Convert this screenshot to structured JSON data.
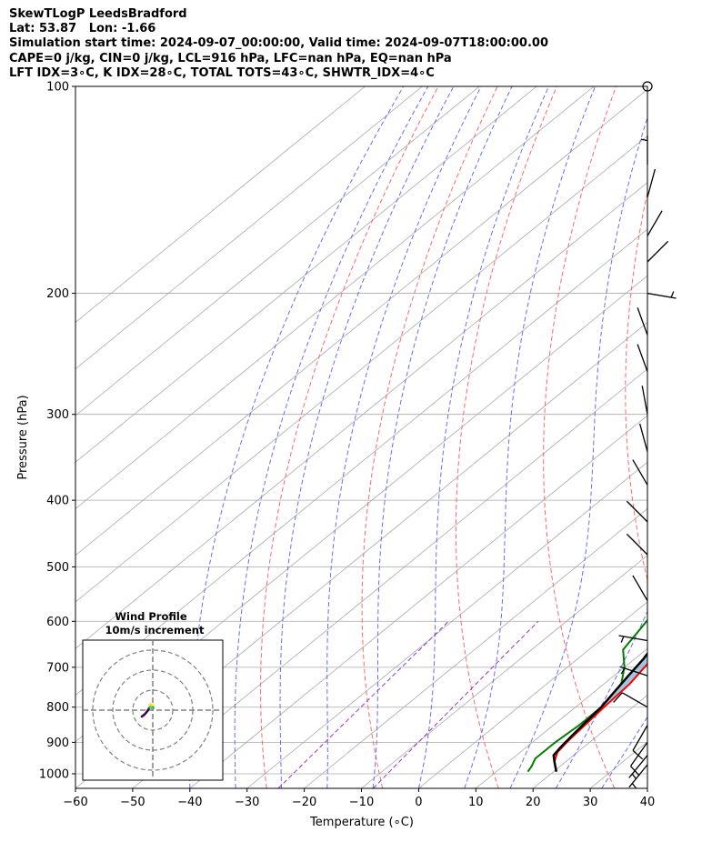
{
  "title_lines": [
    "SkewTLogP LeedsBradford",
    "Lat: 53.87   Lon: -1.66",
    "Simulation start time: 2024-09-07_00:00:00, Valid time: 2024-09-07T18:00:00.00",
    "CAPE=0 j/kg, CIN=0 j/kg, LCL=916 hPa, LFC=nan hPa, EQ=nan hPa",
    "LFT IDX=3∘C, K IDX=28∘C, TOTAL TOTS=43∘C, SHWTR_IDX=4∘C"
  ],
  "chart_data": {
    "type": "line",
    "chart_kind": "skew-T log-P",
    "xlabel": "Temperature (∘C)",
    "ylabel": "Pressure (hPa)",
    "xlim": [
      -60,
      40
    ],
    "ylim": [
      1050,
      100
    ],
    "y_scale": "log",
    "x_ticks": [
      -60,
      -50,
      -40,
      -30,
      -20,
      -10,
      0,
      10,
      20,
      30,
      40
    ],
    "x_tick_labels": [
      "−60",
      "−50",
      "−40",
      "−30",
      "−20",
      "−10",
      "0",
      "10",
      "20",
      "30",
      "40"
    ],
    "y_ticks": [
      100,
      200,
      300,
      400,
      500,
      600,
      700,
      800,
      900,
      1000
    ],
    "grid": true,
    "colors": {
      "temperature": "#ff0000",
      "dewpoint": "#008000",
      "parcel": "#000000",
      "cape_fill": "#7aaed4",
      "dry_adiabat": "#ff6666",
      "moist_adiabat": "#6a6aff",
      "mixing_ratio": "#9933cc",
      "isotherm": "#aaaaaa"
    },
    "series": [
      {
        "key": "temperature",
        "points": [
          [
            20.5,
            993
          ],
          [
            18,
            960
          ],
          [
            16.5,
            930
          ],
          [
            16,
            900
          ],
          [
            15.5,
            850
          ],
          [
            15,
            800
          ],
          [
            14.5,
            740
          ],
          [
            13.5,
            700
          ],
          [
            12.5,
            660
          ],
          [
            11.5,
            600
          ],
          [
            10,
            540
          ],
          [
            9,
            500
          ],
          [
            7,
            450
          ],
          [
            4.5,
            400
          ],
          [
            2.5,
            360
          ],
          [
            0,
            330
          ],
          [
            -2.5,
            305
          ],
          [
            -4,
            285
          ],
          [
            -5.5,
            265
          ],
          [
            -6.5,
            250
          ],
          [
            -7,
            235
          ],
          [
            -6.5,
            220
          ],
          [
            -5,
            210
          ],
          [
            -3,
            200
          ],
          [
            -1,
            192
          ],
          [
            1,
            184
          ],
          [
            3,
            175
          ],
          [
            5,
            165
          ],
          [
            7,
            155
          ],
          [
            9,
            146
          ],
          [
            11,
            138
          ],
          [
            12.5,
            130
          ],
          [
            13.5,
            122
          ],
          [
            14.5,
            114
          ],
          [
            15.5,
            106
          ],
          [
            16,
            100
          ]
        ]
      },
      {
        "key": "dewpoint",
        "points": [
          [
            15.5,
            993
          ],
          [
            15,
            975
          ],
          [
            14,
            950
          ],
          [
            14,
            900
          ],
          [
            14.5,
            850
          ],
          [
            14.5,
            800
          ],
          [
            13,
            740
          ],
          [
            10,
            700
          ],
          [
            6,
            660
          ],
          [
            4,
            600
          ],
          [
            1,
            540
          ],
          [
            -1,
            500
          ],
          [
            -6,
            460
          ],
          [
            -12,
            430
          ],
          [
            -14,
            410
          ],
          [
            -14,
            380
          ],
          [
            -12,
            355
          ],
          [
            -10,
            340
          ],
          [
            -9,
            315
          ],
          [
            -10,
            300
          ],
          [
            -10,
            280
          ],
          [
            -8,
            255
          ],
          [
            -8.5,
            230
          ],
          [
            -9.5,
            210
          ],
          [
            -9.5,
            200
          ],
          [
            -11.5,
            188
          ],
          [
            -15,
            180
          ],
          [
            -19,
            174
          ],
          [
            -21,
            166
          ],
          [
            -20,
            155
          ],
          [
            -16,
            143
          ],
          [
            -12,
            133
          ],
          [
            -8,
            123
          ],
          [
            -4,
            113
          ],
          [
            -1,
            104
          ],
          [
            0,
            100
          ]
        ]
      },
      {
        "key": "parcel",
        "points": [
          [
            20.5,
            993
          ],
          [
            18,
            960
          ],
          [
            16.5,
            940
          ],
          [
            16,
            916
          ],
          [
            15.5,
            880
          ],
          [
            15,
            840
          ],
          [
            14.5,
            800
          ],
          [
            13.5,
            760
          ],
          [
            12.5,
            720
          ],
          [
            11.5,
            680
          ],
          [
            10,
            640
          ],
          [
            8.5,
            600
          ],
          [
            7,
            560
          ],
          [
            5,
            520
          ],
          [
            3,
            480
          ],
          [
            0.5,
            440
          ],
          [
            -2,
            400
          ],
          [
            -5,
            360
          ],
          [
            -8.5,
            320
          ],
          [
            -12.5,
            280
          ],
          [
            -17,
            240
          ],
          [
            -20,
            220
          ],
          [
            -23,
            200
          ],
          [
            -27,
            180
          ],
          [
            -31,
            160
          ],
          [
            -36,
            140
          ],
          [
            -41,
            120
          ],
          [
            -47,
            100
          ]
        ]
      }
    ],
    "wind_barbs": [
      {
        "p": 100,
        "u": 0,
        "v": 0
      },
      {
        "p": 130,
        "u": 0,
        "v": -5
      },
      {
        "p": 145,
        "u": -1.3,
        "v": -4.8
      },
      {
        "p": 165,
        "u": -2.5,
        "v": -4.3
      },
      {
        "p": 180,
        "u": -3.5,
        "v": -3.5
      },
      {
        "p": 200,
        "u": -9.8,
        "v": 1.7
      },
      {
        "p": 230,
        "u": 1.7,
        "v": -4.7
      },
      {
        "p": 260,
        "u": 1.7,
        "v": -4.7
      },
      {
        "p": 300,
        "u": 0.9,
        "v": -4.9
      },
      {
        "p": 340,
        "u": 1.3,
        "v": -4.8
      },
      {
        "p": 380,
        "u": 2.5,
        "v": -4.3
      },
      {
        "p": 430,
        "u": 3.5,
        "v": -3.5
      },
      {
        "p": 480,
        "u": 3.5,
        "v": -3.5
      },
      {
        "p": 560,
        "u": 2.5,
        "v": -4.3
      },
      {
        "p": 640,
        "u": 9.8,
        "v": -1.7
      },
      {
        "p": 720,
        "u": 9.5,
        "v": -3.1
      },
      {
        "p": 800,
        "u": 8.7,
        "v": -5
      },
      {
        "p": 850,
        "u": 5,
        "v": 8.7
      },
      {
        "p": 900,
        "u": 5.8,
        "v": 8.2
      },
      {
        "p": 940,
        "u": 5.3,
        "v": 6.5
      },
      {
        "p": 970,
        "u": 4.7,
        "v": 5.8
      }
    ],
    "hodograph": {
      "title": "Wind Profile",
      "subtitle": "10m/s increment",
      "ring_radii": [
        10,
        20,
        30
      ],
      "limit": 35,
      "points": [
        [
          -5.5,
          -3.2
        ],
        [
          -4.5,
          -2.5
        ],
        [
          -3.5,
          -1.5
        ],
        [
          -2.5,
          -0.2
        ],
        [
          -1.8,
          1
        ],
        [
          -1.2,
          1.8
        ],
        [
          -0.8,
          2.5
        ],
        [
          -0.3,
          2.3
        ],
        [
          0.1,
          1.6
        ],
        [
          0.2,
          1
        ],
        [
          -0.3,
          0.8
        ],
        [
          -0.9,
          1.3
        ],
        [
          -1.3,
          2
        ],
        [
          -1.5,
          2.6
        ],
        [
          -1.1,
          3
        ],
        [
          -0.4,
          2.6
        ],
        [
          0.3,
          2.4
        ]
      ]
    }
  }
}
